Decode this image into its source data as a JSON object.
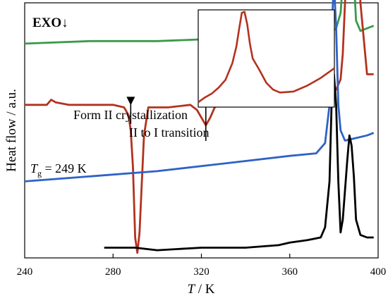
{
  "chart_data": {
    "type": "line",
    "xlabel_italic": "T",
    "xlabel_unit": " / K",
    "ylabel": "Heat flow / a.u.",
    "xlim": [
      240,
      400
    ],
    "x_ticks": [
      "240",
      "280",
      "320",
      "360",
      "400"
    ],
    "corner_label": "EXO↓",
    "tg_label": {
      "main": "T",
      "sub": "g",
      "rest": " = 249 K"
    },
    "annotations": [
      "Form II crystallization",
      "II to I transition"
    ],
    "annotation_x": [
      288,
      322
    ],
    "colors": {
      "green": "#3a9a4a",
      "red": "#b3321f",
      "blue": "#2f62c6",
      "black": "#000000",
      "arrow_red": "#d0311f"
    },
    "series": [
      {
        "color_key": "green",
        "x": [
          240,
          270,
          300,
          330,
          360,
          372,
          378,
          381,
          383,
          385,
          386,
          387,
          388,
          389,
          390,
          392,
          395,
          398
        ],
        "y": [
          0.84,
          0.85,
          0.85,
          0.86,
          0.87,
          0.87,
          0.88,
          0.9,
          0.96,
          1.2,
          1.55,
          1.9,
          1.7,
          1.1,
          0.93,
          0.89,
          0.9,
          0.91
        ]
      },
      {
        "color_key": "red",
        "x": [
          240,
          250,
          252,
          254,
          260,
          280,
          285,
          287,
          288,
          289,
          290,
          291,
          292,
          294,
          296,
          305,
          315,
          318,
          320,
          322,
          324,
          326,
          330,
          350,
          370,
          378,
          381,
          383,
          384,
          386,
          387,
          388,
          389,
          390,
          391,
          392,
          395,
          398
        ],
        "y": [
          0.6,
          0.6,
          0.62,
          0.61,
          0.6,
          0.6,
          0.59,
          0.56,
          0.5,
          0.36,
          0.08,
          0.02,
          0.1,
          0.48,
          0.59,
          0.59,
          0.6,
          0.58,
          0.55,
          0.52,
          0.55,
          0.59,
          0.61,
          0.62,
          0.63,
          0.64,
          0.66,
          0.7,
          0.8,
          1.2,
          1.4,
          1.45,
          1.42,
          1.3,
          1.25,
          1.0,
          0.72,
          0.72
        ]
      },
      {
        "color_key": "blue",
        "x": [
          240,
          270,
          300,
          330,
          360,
          372,
          376,
          378,
          379,
          380,
          381,
          382,
          383,
          385,
          390,
          395,
          398
        ],
        "y": [
          0.3,
          0.32,
          0.34,
          0.37,
          0.4,
          0.41,
          0.45,
          0.6,
          0.9,
          1.08,
          0.9,
          0.6,
          0.5,
          0.46,
          0.47,
          0.48,
          0.49
        ]
      },
      {
        "color_key": "black",
        "x": [
          276,
          290,
          300,
          320,
          340,
          355,
          360,
          368,
          374,
          376,
          378,
          379,
          380,
          381,
          382,
          383,
          384,
          386,
          387,
          388,
          389,
          390,
          392,
          395,
          398
        ],
        "y": [
          0.04,
          0.04,
          0.03,
          0.04,
          0.04,
          0.05,
          0.06,
          0.07,
          0.08,
          0.12,
          0.3,
          0.62,
          0.72,
          0.6,
          0.3,
          0.1,
          0.15,
          0.38,
          0.48,
          0.44,
          0.32,
          0.15,
          0.09,
          0.08,
          0.08
        ]
      }
    ],
    "inset": {
      "color_key": "red",
      "x": [
        0,
        0.05,
        0.1,
        0.15,
        0.2,
        0.25,
        0.28,
        0.3,
        0.32,
        0.34,
        0.36,
        0.38,
        0.4,
        0.45,
        0.5,
        0.55,
        0.6,
        0.7,
        0.8,
        0.9,
        1
      ],
      "y": [
        0.05,
        0.1,
        0.14,
        0.2,
        0.28,
        0.45,
        0.62,
        0.8,
        0.97,
        0.98,
        0.85,
        0.65,
        0.5,
        0.38,
        0.25,
        0.18,
        0.15,
        0.16,
        0.22,
        0.3,
        0.4
      ]
    }
  }
}
